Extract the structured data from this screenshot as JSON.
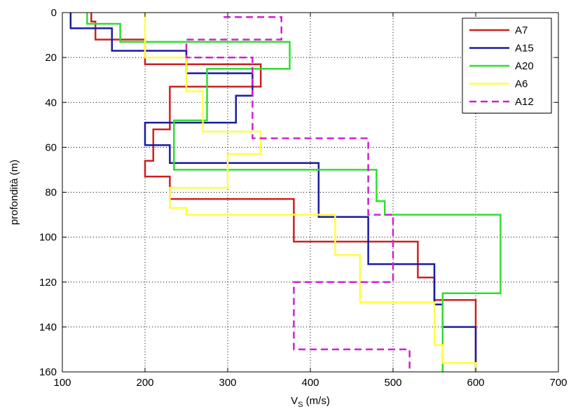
{
  "chart_data": {
    "type": "line",
    "xlabel": "V",
    "xlabel_sub": "S",
    "xlabel_unit": " (m/s)",
    "ylabel": "profondità (m)",
    "xlim": [
      100,
      700
    ],
    "ylim": [
      0,
      160
    ],
    "y_reversed": true,
    "grid": true,
    "legend_position": "top-right",
    "x_ticks": [
      100,
      200,
      300,
      400,
      500,
      600,
      700
    ],
    "y_ticks": [
      0,
      20,
      40,
      60,
      80,
      100,
      120,
      140,
      160
    ],
    "series": [
      {
        "name": "A7",
        "color": "#cc2020",
        "dash": "solid",
        "x": [
          135,
          135,
          140,
          140,
          200,
          200,
          340,
          340,
          230,
          230,
          210,
          210,
          200,
          200,
          230,
          230,
          380,
          380,
          530,
          530,
          550,
          550,
          600,
          600
        ],
        "y": [
          0,
          4,
          4,
          12,
          12,
          23,
          23,
          33,
          33,
          52,
          52,
          66,
          66,
          73,
          73,
          83,
          83,
          102,
          102,
          118,
          118,
          128,
          128,
          160
        ]
      },
      {
        "name": "A15",
        "color": "#1a1aa0",
        "dash": "solid",
        "x": [
          110,
          110,
          160,
          160,
          250,
          250,
          330,
          330,
          310,
          310,
          200,
          200,
          230,
          230,
          410,
          410,
          470,
          470,
          550,
          550,
          560,
          560,
          600,
          600
        ],
        "y": [
          0,
          7,
          7,
          17,
          17,
          27,
          27,
          37,
          37,
          49,
          49,
          59,
          59,
          67,
          67,
          91,
          91,
          112,
          112,
          130,
          130,
          140,
          140,
          160
        ]
      },
      {
        "name": "A20",
        "color": "#30dd30",
        "dash": "solid",
        "x": [
          130,
          130,
          170,
          170,
          375,
          375,
          275,
          275,
          235,
          235,
          480,
          480,
          490,
          490,
          630,
          630,
          560,
          560
        ],
        "y": [
          0,
          5,
          5,
          13,
          13,
          25,
          25,
          48,
          48,
          70,
          70,
          84,
          84,
          90,
          90,
          125,
          125,
          160
        ]
      },
      {
        "name": "A6",
        "color": "#ffff40",
        "dash": "solid",
        "x": [
          200,
          200,
          250,
          250,
          270,
          270,
          340,
          340,
          300,
          300,
          230,
          230,
          250,
          250,
          430,
          430,
          460,
          460,
          550,
          550,
          560,
          560,
          600,
          600
        ],
        "y": [
          0,
          20,
          20,
          35,
          35,
          53,
          53,
          63,
          63,
          78,
          78,
          87,
          87,
          90,
          90,
          108,
          108,
          129,
          129,
          148,
          148,
          156,
          156,
          160
        ]
      },
      {
        "name": "A12",
        "color": "#d020d0",
        "dash": "dashed",
        "x": [
          295,
          295,
          365,
          365,
          250,
          250,
          330,
          330,
          470,
          470,
          500,
          500,
          380,
          380,
          520,
          520
        ],
        "y": [
          2,
          2,
          2,
          12,
          12,
          20,
          20,
          56,
          56,
          90,
          90,
          120,
          120,
          150,
          150,
          160
        ]
      }
    ]
  }
}
